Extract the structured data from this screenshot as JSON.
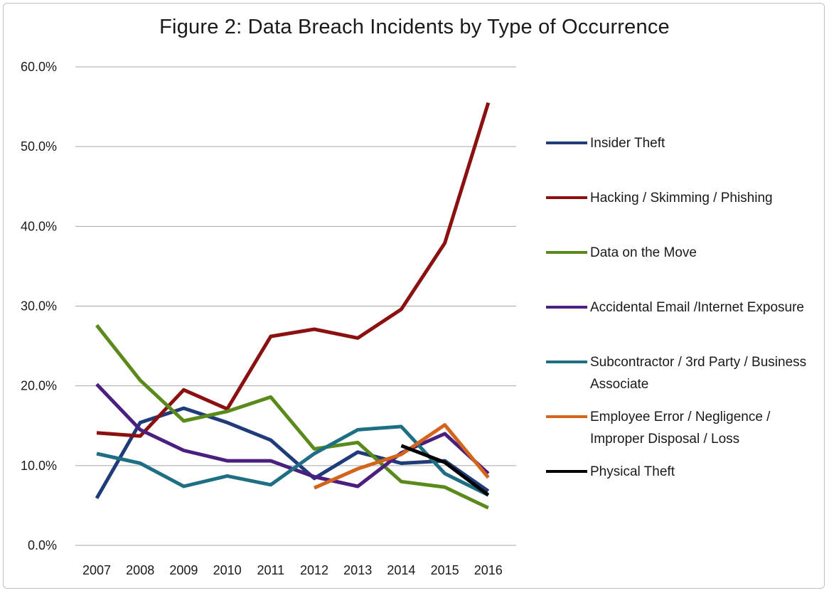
{
  "chart_data": {
    "type": "line",
    "title": "Figure 2:  Data Breach Incidents  by Type  of Occurrence",
    "xlabel": "",
    "ylabel": "",
    "x": [
      "2007",
      "2008",
      "2009",
      "2010",
      "2011",
      "2012",
      "2013",
      "2014",
      "2015",
      "2016"
    ],
    "ylim": [
      0,
      60
    ],
    "y_ticks": [
      "0.0%",
      "10.0%",
      "20.0%",
      "30.0%",
      "40.0%",
      "50.0%",
      "60.0%"
    ],
    "y_tick_values": [
      0,
      10,
      20,
      30,
      40,
      50,
      60
    ],
    "grid": true,
    "legend_position": "right",
    "series": [
      {
        "name": "Insider Theft",
        "color": "#1f3b7a",
        "values": [
          5.9,
          15.4,
          17.2,
          15.4,
          13.2,
          8.4,
          11.7,
          10.3,
          10.6,
          6.8
        ]
      },
      {
        "name": "Hacking / Skimming / Phishing",
        "color": "#8b1010",
        "values": [
          14.1,
          13.7,
          19.5,
          17.1,
          26.2,
          27.1,
          26.0,
          29.6,
          37.9,
          55.5
        ]
      },
      {
        "name": "Data on the Move",
        "color": "#5b8a1c",
        "values": [
          27.6,
          20.7,
          15.6,
          16.8,
          18.6,
          12.1,
          12.9,
          8.0,
          7.3,
          4.7
        ]
      },
      {
        "name": "Accidental Email  /Internet Exposure",
        "color": "#4b1f7f",
        "values": [
          20.2,
          14.5,
          11.9,
          10.6,
          10.6,
          8.6,
          7.4,
          11.6,
          14.0,
          9.0
        ]
      },
      {
        "name": "Subcontractor / 3rd Party / Business Associate",
        "color": "#1f6f84",
        "values": [
          11.5,
          10.3,
          7.4,
          8.7,
          7.6,
          11.5,
          14.5,
          14.9,
          9.0,
          6.3
        ]
      },
      {
        "name": "Employee Error / Negligence / Improper Disposal / Loss",
        "color": "#d2641c",
        "values": [
          null,
          null,
          null,
          null,
          null,
          7.2,
          9.6,
          11.4,
          15.1,
          8.5
        ]
      },
      {
        "name": "Physical Theft",
        "color": "#000000",
        "values": [
          null,
          null,
          null,
          null,
          null,
          null,
          null,
          12.5,
          10.4,
          6.3
        ]
      }
    ]
  }
}
